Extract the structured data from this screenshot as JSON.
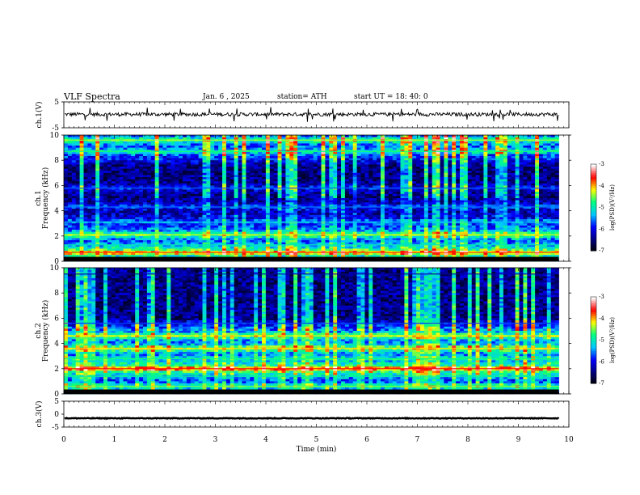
{
  "header": {
    "title": "VLF  Spectra",
    "date": "Jan. 6 , 2025",
    "station": "station= ATH",
    "start": "start  UT  =   18: 40: 0"
  },
  "chart_data": [
    {
      "type": "line",
      "name": "ch1-waveform",
      "ylabel": "ch.1(V)",
      "ylim": [
        -5,
        5
      ],
      "yticks": [
        "5",
        "-5"
      ],
      "xlim": [
        0,
        10
      ],
      "mean_level": 0.2,
      "approx_amplitude": 1.0,
      "color": "#000000"
    },
    {
      "type": "heatmap",
      "name": "ch1-spectrogram",
      "ylabel": "ch.1\nFrequency  (kHz)",
      "ylim": [
        0,
        10
      ],
      "yticks": [
        "0",
        "2",
        "4",
        "6",
        "8",
        "10"
      ],
      "xlim": [
        0,
        10
      ],
      "data_extent_min": 9.8,
      "colorbar": {
        "label": "log(PSD)(V²/Hz)",
        "range": [
          -7,
          -3
        ],
        "ticks": [
          "-3",
          "-4",
          "-5",
          "-6",
          "-7"
        ]
      },
      "bands": [
        {
          "freq_khz": 0.7,
          "log_psd": -4.0
        },
        {
          "freq_khz": 1.3,
          "log_psd": -5.3
        },
        {
          "freq_khz": 2.1,
          "log_psd": -4.6
        },
        {
          "freq_khz": 3.1,
          "log_psd": -5.5
        },
        {
          "freq_khz": 4.3,
          "log_psd": -5.8
        },
        {
          "freq_khz": 5.8,
          "log_psd": -5.9
        },
        {
          "freq_khz": 8.7,
          "log_psd": -5.0
        },
        {
          "freq_khz": 9.6,
          "log_psd": -4.7
        }
      ]
    },
    {
      "type": "heatmap",
      "name": "ch2-spectrogram",
      "ylabel": "ch.2\nFrequency  (kHz)",
      "ylim": [
        0,
        10
      ],
      "yticks": [
        "0",
        "2",
        "4",
        "6",
        "8",
        "10"
      ],
      "xlim": [
        0,
        10
      ],
      "data_extent_min": 9.8,
      "colorbar": {
        "label": "log(PSD)(V²/Hz)",
        "range": [
          -7,
          -3
        ],
        "ticks": [
          "-3",
          "-4",
          "-5",
          "-6",
          "-7"
        ]
      },
      "bands": [
        {
          "freq_khz": 0.6,
          "log_psd": -4.8
        },
        {
          "freq_khz": 1.4,
          "log_psd": -5.2
        },
        {
          "freq_khz": 2.0,
          "log_psd": -3.9
        },
        {
          "freq_khz": 2.8,
          "log_psd": -5.0
        },
        {
          "freq_khz": 3.6,
          "log_psd": -4.4
        },
        {
          "freq_khz": 4.6,
          "log_psd": -4.5
        },
        {
          "freq_khz": 5.6,
          "log_psd": -6.0
        },
        {
          "freq_khz": 9.5,
          "log_psd": -6.6
        }
      ]
    },
    {
      "type": "line",
      "name": "ch3-waveform",
      "ylabel": "ch.3(V)",
      "ylim": [
        -5,
        5
      ],
      "yticks": [
        "5",
        "0",
        "-5"
      ],
      "xlim": [
        0,
        10
      ],
      "mean_level": -1.6,
      "approx_amplitude": 0.2,
      "color": "#000000"
    }
  ],
  "xaxis": {
    "label": "Time  (min)",
    "ticks": [
      "0",
      "1",
      "2",
      "3",
      "4",
      "5",
      "6",
      "7",
      "8",
      "9",
      "10"
    ],
    "range": [
      0,
      10
    ]
  },
  "colors": {
    "colormap": [
      "#000000",
      "#000080",
      "#0000ff",
      "#00c8ff",
      "#00ff80",
      "#ffff00",
      "#ff0000",
      "#ffffff"
    ]
  }
}
